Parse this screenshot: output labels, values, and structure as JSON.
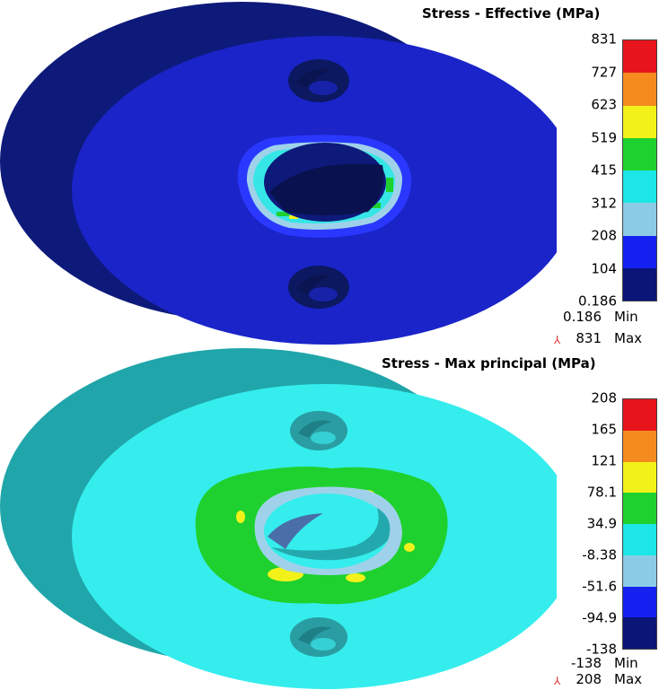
{
  "legend_colors": [
    "#e8141c",
    "#f58a1f",
    "#f2f21a",
    "#1fd12e",
    "#1ce6e6",
    "#8ccbe6",
    "#1421f0",
    "#0a1578"
  ],
  "top_plot": {
    "title": "Stress - Effective (MPa)",
    "ticks": [
      "831",
      "727",
      "623",
      "519",
      "415",
      "312",
      "208",
      "104",
      "0.186"
    ],
    "min_value": "0.186",
    "min_label": "Min",
    "max_value": "831",
    "max_label": "Max"
  },
  "bottom_plot": {
    "title": "Stress - Max principal (MPa)",
    "ticks": [
      "208",
      "165",
      "121",
      "78.1",
      "34.9",
      "-8.38",
      "-51.6",
      "-94.9",
      "-138"
    ],
    "min_value": "-138",
    "min_label": "Min",
    "max_value": "208",
    "max_label": "Max"
  }
}
